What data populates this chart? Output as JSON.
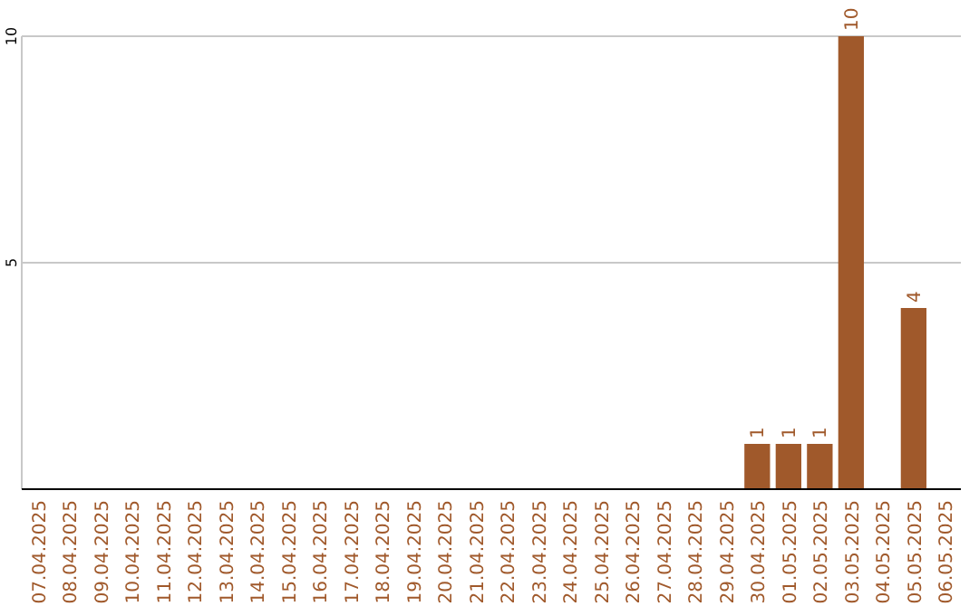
{
  "chart_data": {
    "type": "bar",
    "categories": [
      "07.04.2025",
      "08.04.2025",
      "09.04.2025",
      "10.04.2025",
      "11.04.2025",
      "12.04.2025",
      "13.04.2025",
      "14.04.2025",
      "15.04.2025",
      "16.04.2025",
      "17.04.2025",
      "18.04.2025",
      "19.04.2025",
      "20.04.2025",
      "21.04.2025",
      "22.04.2025",
      "23.04.2025",
      "24.04.2025",
      "25.04.2025",
      "26.04.2025",
      "27.04.2025",
      "28.04.2025",
      "29.04.2025",
      "30.04.2025",
      "01.05.2025",
      "02.05.2025",
      "03.05.2025",
      "04.05.2025",
      "05.05.2025",
      "06.05.2025"
    ],
    "values": [
      0,
      0,
      0,
      0,
      0,
      0,
      0,
      0,
      0,
      0,
      0,
      0,
      0,
      0,
      0,
      0,
      0,
      0,
      0,
      0,
      0,
      0,
      0,
      1,
      1,
      1,
      10,
      0,
      4,
      0
    ],
    "value_labels": [
      null,
      null,
      null,
      null,
      null,
      null,
      null,
      null,
      null,
      null,
      null,
      null,
      null,
      null,
      null,
      null,
      null,
      null,
      null,
      null,
      null,
      null,
      null,
      "1",
      "1",
      "1",
      "10",
      null,
      "4",
      null
    ],
    "color": "#a0592b",
    "ylim": [
      0,
      10
    ],
    "yticks": [
      5,
      10
    ],
    "grid": "y"
  }
}
